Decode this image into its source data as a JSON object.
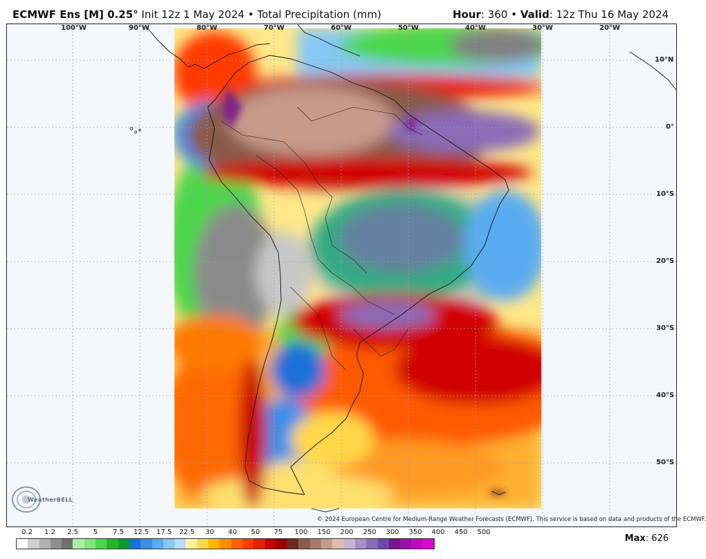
{
  "header": {
    "model": "ECMWF Ens [M] 0.25",
    "degree_symbol": "°",
    "init_text": "Init 12z 1 May 2024",
    "bullet": "•",
    "field": "Total Precipitation (mm)",
    "hour_label": "Hour",
    "hour_value": ": 360",
    "valid_label": "Valid",
    "valid_value": ": 12z Thu 16 May 2024"
  },
  "map": {
    "lon_labels": [
      "100°W",
      "90°W",
      "80°W",
      "70°W",
      "60°W",
      "50°W",
      "40°W",
      "30°W",
      "20°W"
    ],
    "lat_labels": [
      "10°N",
      "0°",
      "10°S",
      "20°S",
      "30°S",
      "40°S",
      "50°S"
    ],
    "region": "South America"
  },
  "credit": "© 2024 European Centre for Medium-Range Weather Forecasts (ECMWF). This service is based on data and products of the ECMWF.",
  "logo_text": "WeatherBELL",
  "legend": {
    "labels": [
      "0.2",
      "1.2",
      "2.5",
      "5",
      "7.5",
      "12.5",
      "17.5",
      "22.5",
      "30",
      "40",
      "50",
      "75",
      "100",
      "150",
      "200",
      "250",
      "300",
      "350",
      "400",
      "450",
      "500"
    ],
    "colors": [
      "#ffffff",
      "#cfcfcf",
      "#b0b0b0",
      "#8f8f8f",
      "#707070",
      "#a8f0a0",
      "#7ee67a",
      "#4cd64c",
      "#22b822",
      "#0e9a2e",
      "#1a70d8",
      "#3a8ee8",
      "#5aacf0",
      "#86c8f6",
      "#b0e0fa",
      "#fff09a",
      "#ffd84a",
      "#ffb800",
      "#ff8c00",
      "#ff6000",
      "#ff3a00",
      "#e81e00",
      "#c80000",
      "#9a0000",
      "#6e2a1e",
      "#8a5a4a",
      "#a87a6a",
      "#c89a8a",
      "#e0bcb0",
      "#c8b4d8",
      "#a890c8",
      "#8a6cb8",
      "#6e48a8",
      "#7a1490",
      "#9a10a8",
      "#c00ac0",
      "#e006d8"
    ]
  },
  "max_label": "Max",
  "max_value": ": 626"
}
